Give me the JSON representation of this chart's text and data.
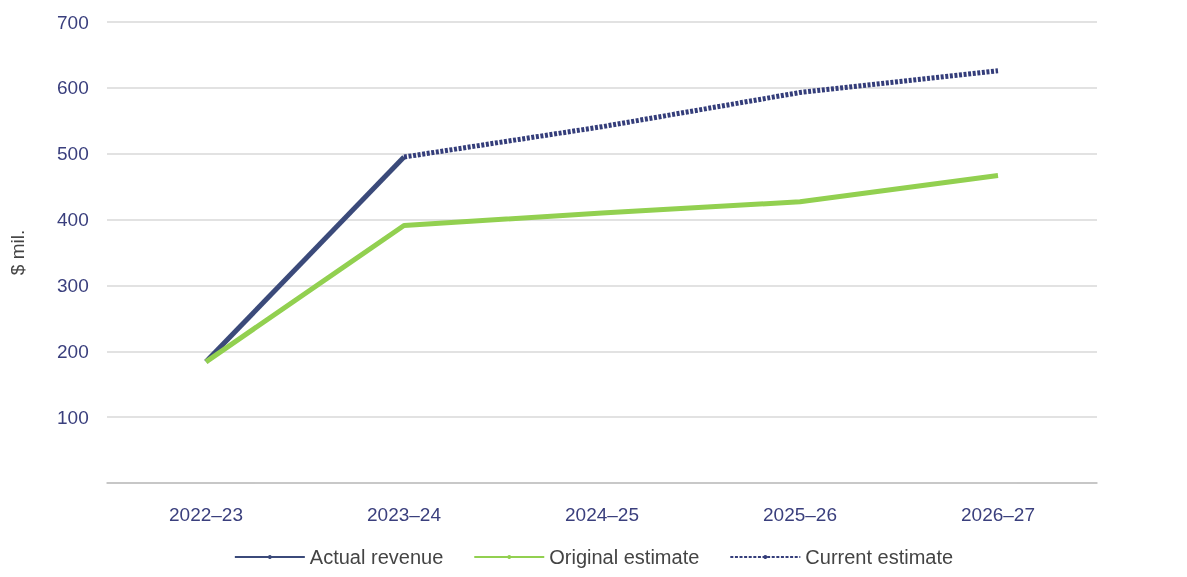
{
  "chart_data": {
    "type": "line",
    "ylabel": "$ mil.",
    "categories": [
      "2022–23",
      "2023–24",
      "2024–25",
      "2025–26",
      "2026–27"
    ],
    "series": [
      {
        "name": "Actual revenue",
        "color": "#3b4a7a",
        "line_style": "solid",
        "values": [
          184,
          495,
          null,
          null,
          null
        ]
      },
      {
        "name": "Original estimate",
        "color": "#92d050",
        "line_style": "solid",
        "values": [
          184,
          391,
          410,
          427,
          467
        ]
      },
      {
        "name": "Current estimate",
        "color": "#343d7a",
        "line_style": "dashed",
        "values": [
          null,
          495,
          541,
          593,
          626
        ]
      }
    ],
    "ylim": [
      0,
      700
    ],
    "yticks": [
      {
        "value": 0,
        "label": null
      },
      100,
      200,
      300,
      400,
      500,
      600,
      700
    ],
    "grid": "y",
    "legend": "bottom",
    "marker": "none"
  }
}
